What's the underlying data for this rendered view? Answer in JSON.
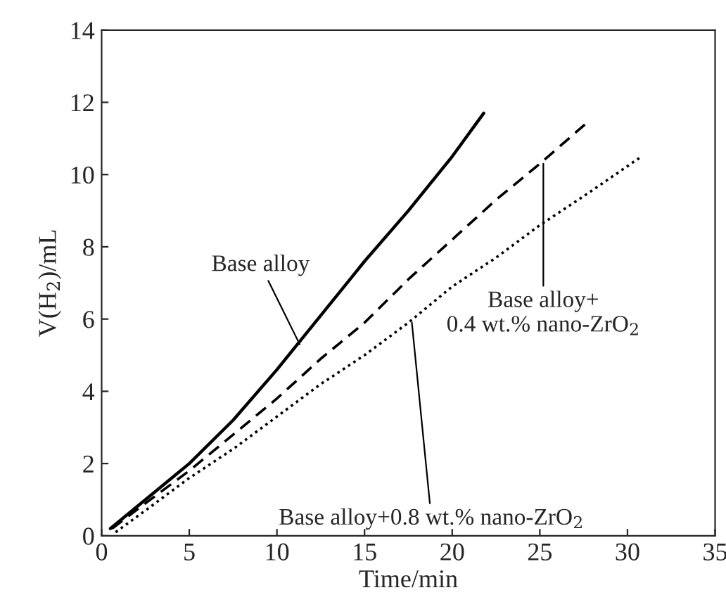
{
  "chart_data": {
    "type": "line",
    "xlabel": "Time/min",
    "ylabel": "V(H$_{2}$)/mL",
    "xlim": [
      0,
      35
    ],
    "xticks": [
      0,
      5,
      10,
      15,
      20,
      25,
      30,
      35
    ],
    "ylim": [
      0,
      14
    ],
    "yticks": [
      0,
      2,
      4,
      6,
      8,
      10,
      12,
      14
    ],
    "grid": false,
    "legend": false,
    "series": [
      {
        "color": "#000000",
        "line_style": "solid",
        "x": [
          0.5,
          2.5,
          5,
          7.5,
          10,
          12.5,
          15,
          17.5,
          20,
          21.8
        ],
        "values": [
          0.2,
          1.0,
          2.0,
          3.2,
          4.6,
          6.1,
          7.6,
          9.0,
          10.5,
          11.7
        ]
      },
      {
        "color": "#000000",
        "line_style": "dashed",
        "x": [
          0.6,
          2.5,
          5,
          7.5,
          10,
          12.5,
          15,
          17.5,
          20,
          22.5,
          25,
          27.6
        ],
        "values": [
          0.2,
          0.9,
          1.8,
          2.8,
          3.8,
          4.9,
          5.9,
          7.1,
          8.2,
          9.3,
          10.3,
          11.4
        ]
      },
      {
        "color": "#000000",
        "line_style": "dotted",
        "x": [
          0.8,
          2.5,
          5,
          7.5,
          10,
          12.5,
          15,
          17.5,
          20,
          22.5,
          25,
          27.5,
          30.8
        ],
        "values": [
          0.1,
          0.7,
          1.6,
          2.4,
          3.3,
          4.2,
          5.0,
          5.9,
          6.9,
          7.7,
          8.6,
          9.4,
          10.5
        ]
      }
    ],
    "annotations": [
      {
        "text": "Base alloy",
        "x": 11.3,
        "y": 5.3
      },
      {
        "text": "Base alloy+\n0.4 wt.% nano-ZrO$_{2}$",
        "x": 25.2,
        "y": 10.3
      },
      {
        "text": "Base alloy+0.8 wt.% nano-ZrO$_{2}$",
        "x": 17.7,
        "y": 5.9
      }
    ]
  }
}
